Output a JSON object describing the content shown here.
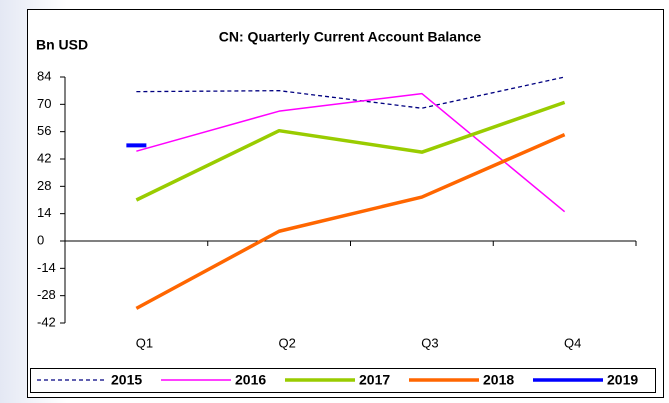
{
  "chart_data": {
    "type": "line",
    "title": "CN: Quarterly Current Account Balance",
    "y_label": "Bn USD",
    "categories": [
      "Q1",
      "Q2",
      "Q3",
      "Q4"
    ],
    "series": [
      {
        "name": "2015",
        "color": "#000080",
        "dashed": true,
        "values": [
          76.5,
          77,
          68,
          84
        ]
      },
      {
        "name": "2016",
        "color": "#ff00ff",
        "values": [
          46,
          66.5,
          75.5,
          15
        ]
      },
      {
        "name": "2017",
        "color": "#99cc00",
        "values": [
          21,
          56.5,
          45.5,
          71
        ]
      },
      {
        "name": "2018",
        "color": "#ff6600",
        "values": [
          -34.5,
          5,
          22.5,
          54.5
        ]
      },
      {
        "name": "2019",
        "color": "#0000ff",
        "values": [
          49,
          null,
          null,
          null
        ]
      }
    ],
    "ylim": [
      -42,
      84
    ],
    "yticks": [
      -42,
      -28,
      -14,
      0,
      14,
      28,
      42,
      56,
      70,
      84
    ]
  }
}
